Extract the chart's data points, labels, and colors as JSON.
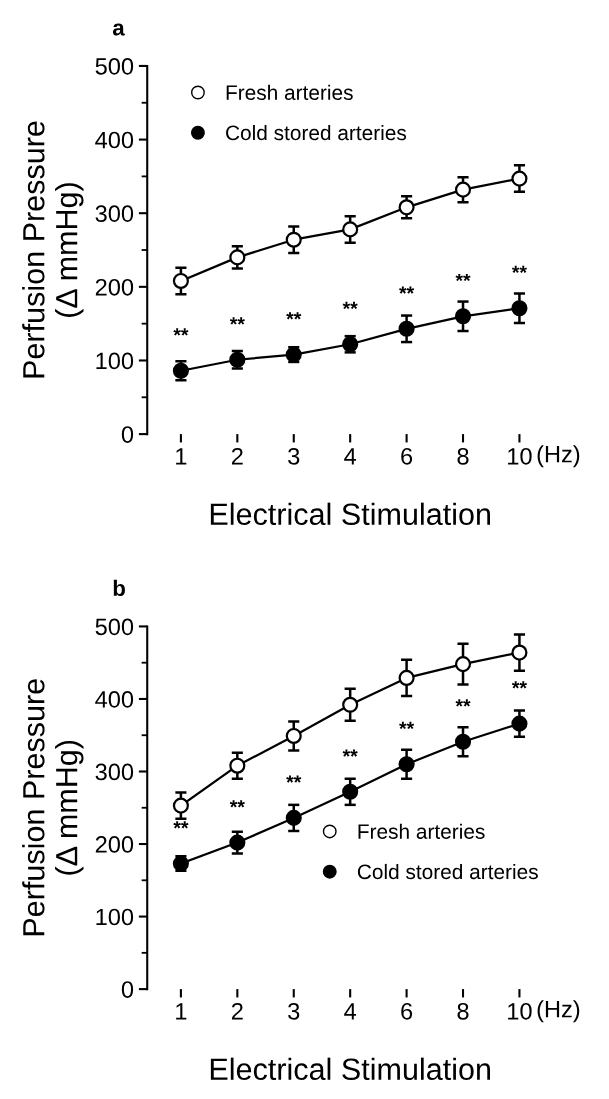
{
  "chart_data": [
    {
      "type": "line",
      "title": "a",
      "xlabel": "Electrical Stimulation",
      "ylabel": "Perfusion Pressure\n(Δ mmHg)",
      "categories": [
        "1",
        "2",
        "3",
        "4",
        "6",
        "8",
        "10"
      ],
      "ylim": [
        0,
        500
      ],
      "yticks": [
        0,
        {
          "value": 50,
          "label": null
        },
        100,
        {
          "value": 150,
          "label": null
        },
        200,
        {
          "value": 250,
          "label": null
        },
        300,
        {
          "value": 350,
          "label": null
        },
        400,
        {
          "value": 450,
          "label": null
        },
        500
      ],
      "marker": "circle",
      "line_style": "solid",
      "grid": false,
      "legend": "top left",
      "series": [
        {
          "name": "Fresh arteries",
          "color": "#ffffff",
          "values": [
            208,
            240,
            264,
            278,
            308,
            332,
            347
          ],
          "errors": [
            18,
            15,
            18,
            18,
            15,
            17,
            18
          ]
        },
        {
          "name": "Cold stored arteries",
          "color": "#000000",
          "values": [
            86,
            101,
            108,
            122,
            143,
            160,
            171
          ],
          "errors": [
            13,
            12,
            10,
            11,
            18,
            20,
            20
          ]
        }
      ],
      "annotations": [
        "(Hz)",
        {
          "text": "**",
          "x": "1",
          "y": 86
        },
        {
          "text": "**",
          "x": "2",
          "y": 101
        },
        {
          "text": "**",
          "x": "3",
          "y": 108
        },
        {
          "text": "**",
          "x": "4",
          "y": 122
        },
        {
          "text": "**",
          "x": "6",
          "y": 143
        },
        {
          "text": "**",
          "x": "8",
          "y": 160
        },
        {
          "text": "**",
          "x": "10",
          "y": 171
        }
      ]
    },
    {
      "type": "line",
      "title": "b",
      "xlabel": "Electrical Stimulation",
      "ylabel": "Perfusion Pressure\n(Δ mmHg)",
      "categories": [
        "1",
        "2",
        "3",
        "4",
        "6",
        "8",
        "10"
      ],
      "ylim": [
        0,
        500
      ],
      "yticks": [
        0,
        {
          "value": 50,
          "label": null
        },
        100,
        {
          "value": 150,
          "label": null
        },
        200,
        {
          "value": 250,
          "label": null
        },
        300,
        {
          "value": 350,
          "label": null
        },
        400,
        {
          "value": 450,
          "label": null
        },
        500
      ],
      "marker": "circle",
      "line_style": "solid",
      "grid": false,
      "legend": "bottom right",
      "series": [
        {
          "name": "Fresh arteries",
          "color": "#ffffff",
          "values": [
            253,
            308,
            349,
            392,
            429,
            448,
            464
          ],
          "errors": [
            18,
            18,
            20,
            22,
            25,
            28,
            25
          ]
        },
        {
          "name": "Cold stored arteries",
          "color": "#000000",
          "values": [
            173,
            202,
            236,
            272,
            310,
            341,
            366
          ],
          "errors": [
            10,
            15,
            18,
            18,
            20,
            20,
            18
          ]
        }
      ],
      "annotations": [
        "(Hz)",
        {
          "text": "**",
          "x": "1",
          "y": 173
        },
        {
          "text": "**",
          "x": "2",
          "y": 202
        },
        {
          "text": "**",
          "x": "3",
          "y": 236
        },
        {
          "text": "**",
          "x": "4",
          "y": 272
        },
        {
          "text": "**",
          "x": "6",
          "y": 310
        },
        {
          "text": "**",
          "x": "8",
          "y": 341
        },
        {
          "text": "**",
          "x": "10",
          "y": 366
        }
      ]
    }
  ]
}
